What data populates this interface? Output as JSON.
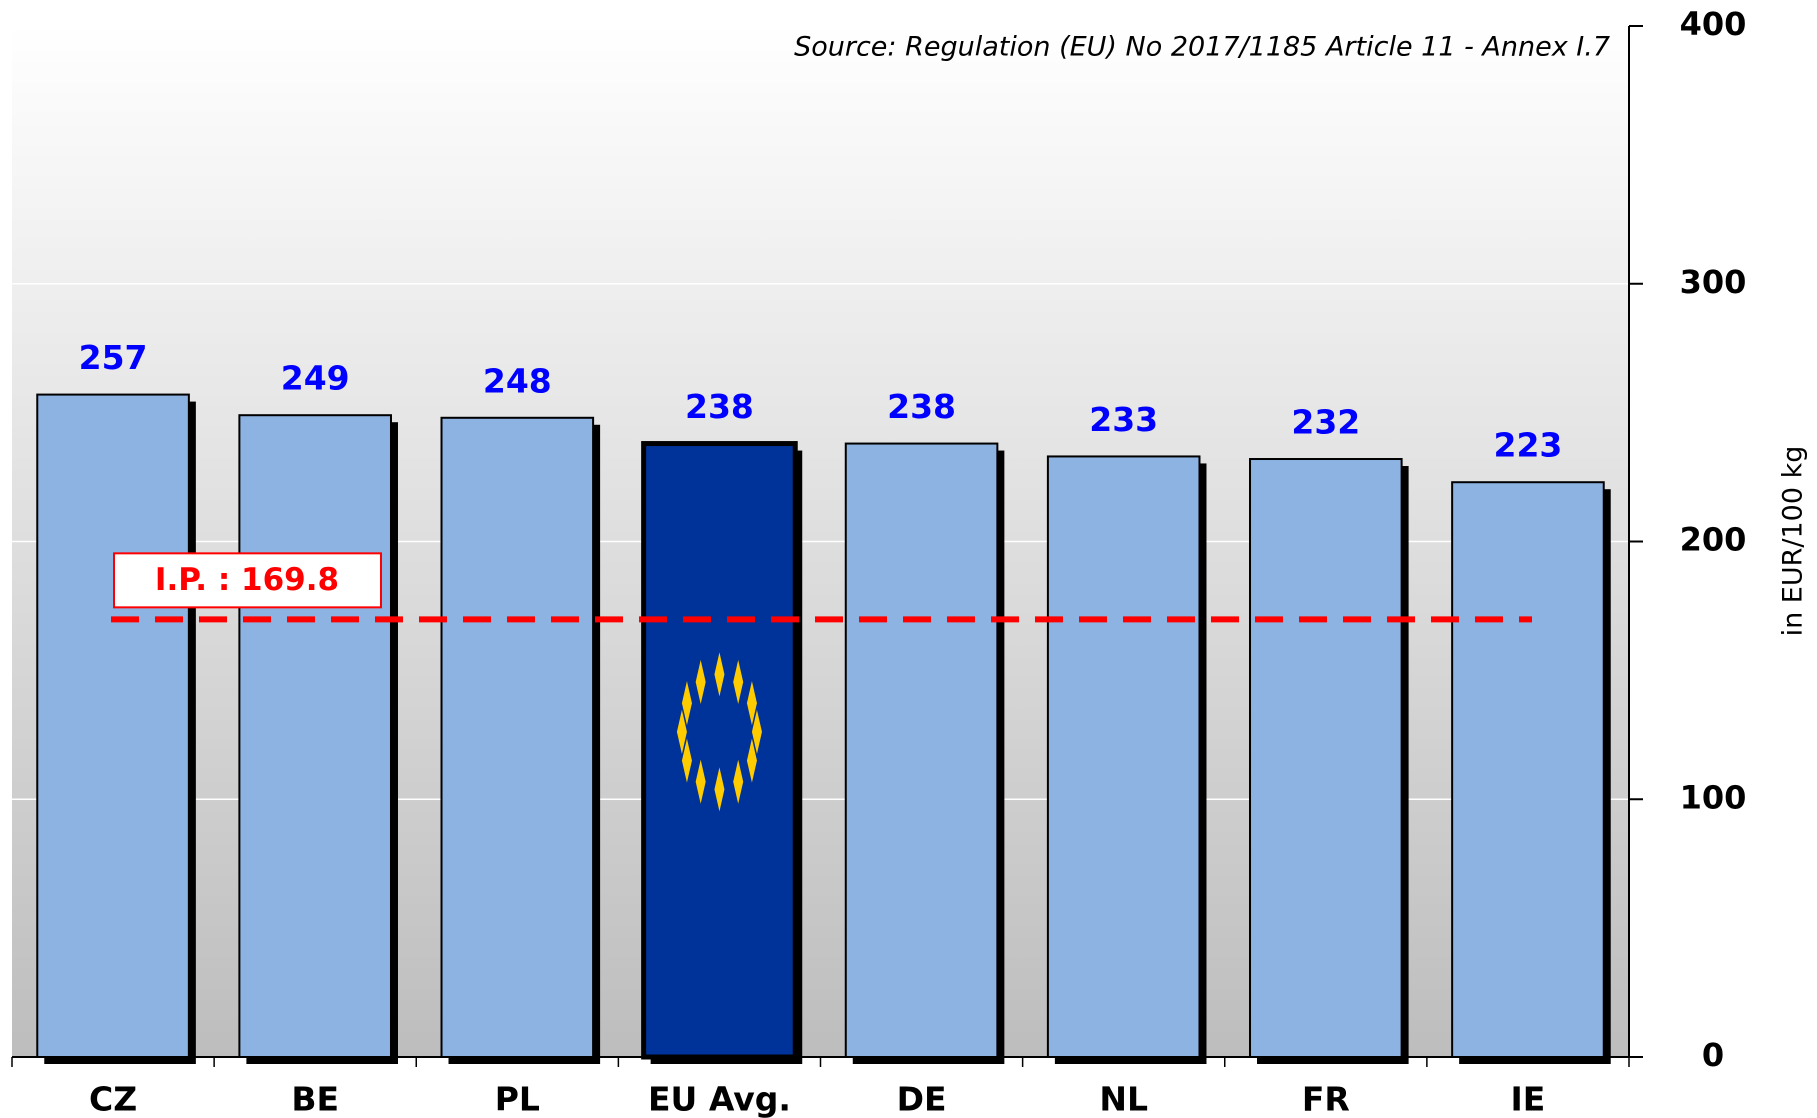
{
  "chart_data": {
    "type": "bar",
    "source": "Source: Regulation (EU) No 2017/1185 Article 11 - Annex I.7",
    "y_label": "in EUR/100 kg",
    "categories": [
      "CZ",
      "BE",
      "PL",
      "EU Avg.",
      "DE",
      "NL",
      "FR",
      "IE"
    ],
    "values": [
      257,
      249,
      248,
      238,
      238,
      233,
      232,
      223
    ],
    "colors": [
      "#8db3e2",
      "#8db3e2",
      "#8db3e2",
      "#003399",
      "#8db3e2",
      "#8db3e2",
      "#8db3e2",
      "#8db3e2"
    ],
    "value_label_color": "#0000ff",
    "ylim": [
      0,
      400
    ],
    "yticks": [
      0,
      100,
      200,
      300,
      400
    ],
    "grid": true,
    "reference_line": {
      "value": 169.8,
      "label": "I.P. : 169.8",
      "color": "#ff0000"
    }
  }
}
